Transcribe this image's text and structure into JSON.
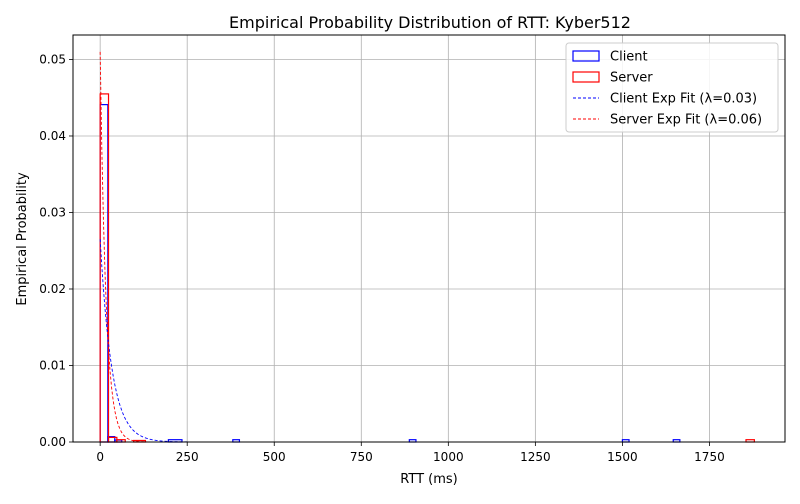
{
  "chart_data": {
    "type": "histogram",
    "title": "Empirical Probability Distribution of RTT: Kyber512",
    "xlabel": "RTT (ms)",
    "ylabel": "Empirical Probability",
    "xlim": [
      -78,
      1967
    ],
    "ylim": [
      0,
      0.0532
    ],
    "x_ticks": [
      0,
      250,
      500,
      750,
      1000,
      1250,
      1500,
      1750
    ],
    "x_tick_labels": [
      "0",
      "250",
      "500",
      "750",
      "1000",
      "1250",
      "1500",
      "1750"
    ],
    "y_ticks": [
      0,
      0.01,
      0.02,
      0.03,
      0.04,
      0.05
    ],
    "y_tick_labels": [
      "0.00",
      "0.01",
      "0.02",
      "0.03",
      "0.04",
      "0.05"
    ],
    "grid": true,
    "legend_position": "top-right",
    "legend": [
      {
        "label": "Client",
        "kind": "box",
        "color": "#0000ff"
      },
      {
        "label": "Server",
        "kind": "box",
        "color": "#ff0000"
      },
      {
        "label": "Client Exp Fit (λ=0.03)",
        "kind": "dashed-line",
        "color": "#0000ff"
      },
      {
        "label": "Server Exp Fit (λ=0.06)",
        "kind": "dashed-line",
        "color": "#ff0000"
      }
    ],
    "series": [
      {
        "name": "Client",
        "kind": "step-histogram",
        "color": "#0000ff",
        "bin_width": 19.5,
        "bins": [
          {
            "x0": 0,
            "x1": 22,
            "y": 0.0441
          },
          {
            "x0": 22,
            "x1": 42,
            "y": 0.0007
          },
          {
            "x0": 42,
            "x1": 62,
            "y": 0.00025
          },
          {
            "x0": 196,
            "x1": 235,
            "y": 0.0003
          },
          {
            "x0": 381,
            "x1": 400,
            "y": 0.0003
          },
          {
            "x0": 888,
            "x1": 907,
            "y": 0.0003
          },
          {
            "x0": 1500,
            "x1": 1519,
            "y": 0.0003
          },
          {
            "x0": 1646,
            "x1": 1665,
            "y": 0.0003
          }
        ]
      },
      {
        "name": "Server",
        "kind": "step-histogram",
        "color": "#ff0000",
        "bin_width": 24,
        "bins": [
          {
            "x0": 0,
            "x1": 24,
            "y": 0.0455
          },
          {
            "x0": 24,
            "x1": 48,
            "y": 0.0006
          },
          {
            "x0": 48,
            "x1": 72,
            "y": 0.0003
          },
          {
            "x0": 96,
            "x1": 130,
            "y": 0.0002
          },
          {
            "x0": 1855,
            "x1": 1879,
            "y": 0.0003
          }
        ]
      },
      {
        "name": "Client Exp Fit (λ=0.03)",
        "kind": "exp-curve",
        "color": "#0000ff",
        "lambda": 0.03,
        "amplitude": 0.0265,
        "x_start": 0,
        "x_end": 1879
      },
      {
        "name": "Server Exp Fit (λ=0.06)",
        "kind": "exp-curve",
        "color": "#ff0000",
        "lambda": 0.06,
        "amplitude": 0.051,
        "x_start": 0,
        "x_end": 1879
      }
    ]
  }
}
